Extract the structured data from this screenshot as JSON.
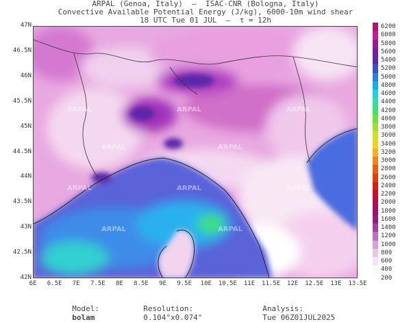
{
  "header": {
    "line1": "ARPAL (Genoa, Italy)  –  ISAC-CNR (Bologna, Italy)",
    "line2": "Convective Available Potential Energy (J/kg), 6000-10m wind shear",
    "line3": "18 UTC Tue 01 JUL  –  τ = 12h"
  },
  "axes": {
    "lat_labels": [
      "47N",
      "46.5N",
      "46N",
      "45.5N",
      "45N",
      "44.5N",
      "44N",
      "43.5N",
      "43N",
      "42.5N",
      "42N"
    ],
    "lon_labels": [
      "6E",
      "6.5E",
      "7E",
      "7.5E",
      "8E",
      "8.5E",
      "9E",
      "9.5E",
      "10E",
      "10.5E",
      "11E",
      "11.5E",
      "12E",
      "12.5E",
      "13E",
      "13.5E"
    ]
  },
  "colorbar": {
    "labels": [
      "6200",
      "6000",
      "5800",
      "5600",
      "5400",
      "5200",
      "5000",
      "4800",
      "4600",
      "4400",
      "4200",
      "4000",
      "3800",
      "3600",
      "3400",
      "3200",
      "3000",
      "2800",
      "2600",
      "2400",
      "2200",
      "2000",
      "1800",
      "1600",
      "1400",
      "1200",
      "1000",
      "800",
      "600",
      "400",
      "200"
    ],
    "colors": [
      "#b0157a",
      "#c0208c",
      "#9a1a94",
      "#7a1aa0",
      "#5a28a8",
      "#3c50c8",
      "#2a80e0",
      "#10b0ee",
      "#20d0e0",
      "#30e0a0",
      "#40e070",
      "#70e040",
      "#a0e030",
      "#d0e020",
      "#f0d020",
      "#f8b020",
      "#f08818",
      "#e86010",
      "#e04008",
      "#d82010",
      "#c8102a",
      "#b01050",
      "#a0106a",
      "#902080",
      "#a040a0",
      "#c070c0",
      "#d8a0d8",
      "#e8c8e8",
      "#f4e4f4",
      "#fafafa",
      "#ffffff"
    ]
  },
  "watermark": "ARPAL",
  "footer": {
    "model_label": "Model:",
    "model_value": "bolam",
    "resolution_label": "Resolution:",
    "resolution_value": "0.104°x0.074°",
    "analysis_label": "Analysis:",
    "analysis_value": "Tue 06Z01JUL2025"
  }
}
